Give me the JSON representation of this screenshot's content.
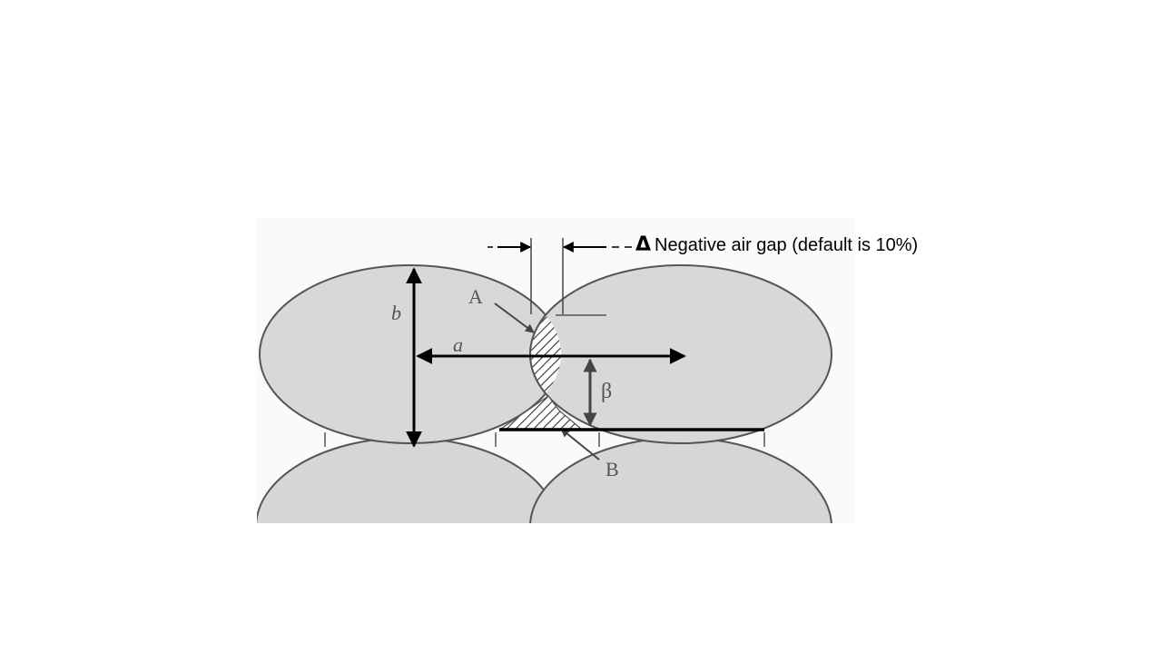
{
  "caption": {
    "symbol": "Δ",
    "text": "Negative air gap (default is 10%)"
  },
  "labels": {
    "a": "a",
    "b": "b",
    "A": "A",
    "B": "B",
    "beta": "β"
  },
  "colors": {
    "strand_fill": "#d6d6d6",
    "strand_edge": "#555555",
    "arrow": "#000000"
  }
}
